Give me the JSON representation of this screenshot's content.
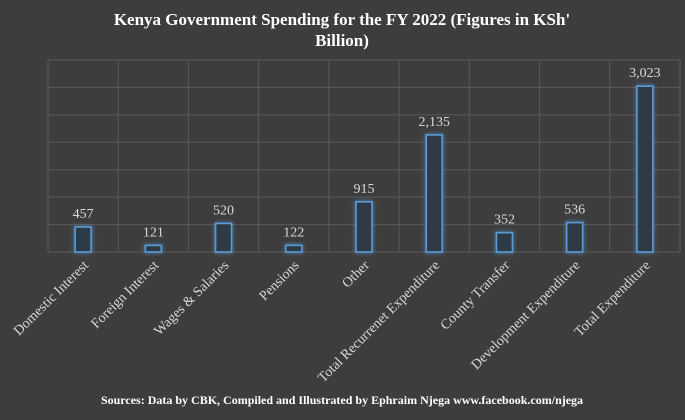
{
  "colors": {
    "background": "#3d3d3d",
    "grid": "#5a5a5a",
    "text": "#d9d9d9",
    "title": "#ffffff",
    "bar_fill": "#2f3b47",
    "bar_stroke": "#5b9bd5",
    "bar_glow": "#2e75b6"
  },
  "chart_data": {
    "type": "bar",
    "title_line1": "Kenya Government Spending for the FY 2022 (Figures in KSh'",
    "title_line2": "Billion)",
    "categories": [
      "Domestic Interest",
      "Foreign Interest",
      "Wages & Salaries",
      "Pensions",
      "Other",
      "Total Recurrenet Expenditure",
      "County Transfer",
      "Development Expenditure",
      "Total Expenditure"
    ],
    "values": [
      457,
      121,
      520,
      122,
      915,
      2135,
      352,
      536,
      3023
    ],
    "value_labels": [
      "457",
      "121",
      "520",
      "122",
      "915",
      "2,135",
      "352",
      "536",
      "3,023"
    ],
    "ylim": [
      0,
      3500
    ],
    "y_gridlines": [
      0,
      500,
      1000,
      1500,
      2000,
      2500,
      3000,
      3500
    ],
    "grid": true,
    "xlabel": "",
    "ylabel": "",
    "source": "Sources: Data by CBK, Compiled and Illustrated by Ephraim Njega www.facebook.com/njega"
  }
}
